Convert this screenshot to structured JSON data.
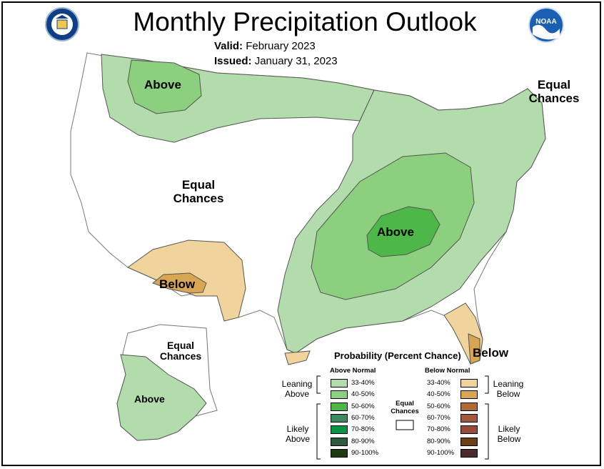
{
  "title": "Monthly Precipitation Outlook",
  "valid_label": "Valid:",
  "valid_value": "February 2023",
  "issued_label": "Issued:",
  "issued_value": "January 31, 2023",
  "logos": {
    "left": "dept-of-commerce-seal-icon",
    "right": "noaa-logo-icon"
  },
  "map_labels": {
    "above_north": "Above",
    "equal_west_1": "Equal",
    "equal_west_2": "Chances",
    "equal_ne_1": "Equal",
    "equal_ne_2": "Chances",
    "above_central": "Above",
    "below_sw": "Below",
    "below_fl": "Below",
    "alaska_equal_1": "Equal",
    "alaska_equal_2": "Chances",
    "alaska_above": "Above"
  },
  "legend": {
    "title": "Probability (Percent Chance)",
    "above_header": "Above Normal",
    "below_header": "Below Normal",
    "equal_1": "Equal",
    "equal_2": "Chances",
    "leaning_above_1": "Leaning",
    "leaning_above_2": "Above",
    "likely_above_1": "Likely",
    "likely_above_2": "Above",
    "leaning_below_1": "Leaning",
    "leaning_below_2": "Below",
    "likely_below_1": "Likely",
    "likely_below_2": "Below",
    "above_rows": [
      {
        "label": "33-40%",
        "color": "#b2dcab"
      },
      {
        "label": "40-50%",
        "color": "#8ccf7e"
      },
      {
        "label": "50-60%",
        "color": "#4db848"
      },
      {
        "label": "60-70%",
        "color": "#3c8a5e"
      },
      {
        "label": "70-80%",
        "color": "#0a9444"
      },
      {
        "label": "80-90%",
        "color": "#2e5b3f"
      },
      {
        "label": "90-100%",
        "color": "#1d3a11"
      }
    ],
    "below_rows": [
      {
        "label": "33-40%",
        "color": "#f1d49b"
      },
      {
        "label": "40-50%",
        "color": "#d8a552"
      },
      {
        "label": "50-60%",
        "color": "#b06a33"
      },
      {
        "label": "60-70%",
        "color": "#a45a3a"
      },
      {
        "label": "70-80%",
        "color": "#9a4a3a"
      },
      {
        "label": "80-90%",
        "color": "#6b3f12"
      },
      {
        "label": "90-100%",
        "color": "#4b2c2c"
      }
    ]
  }
}
